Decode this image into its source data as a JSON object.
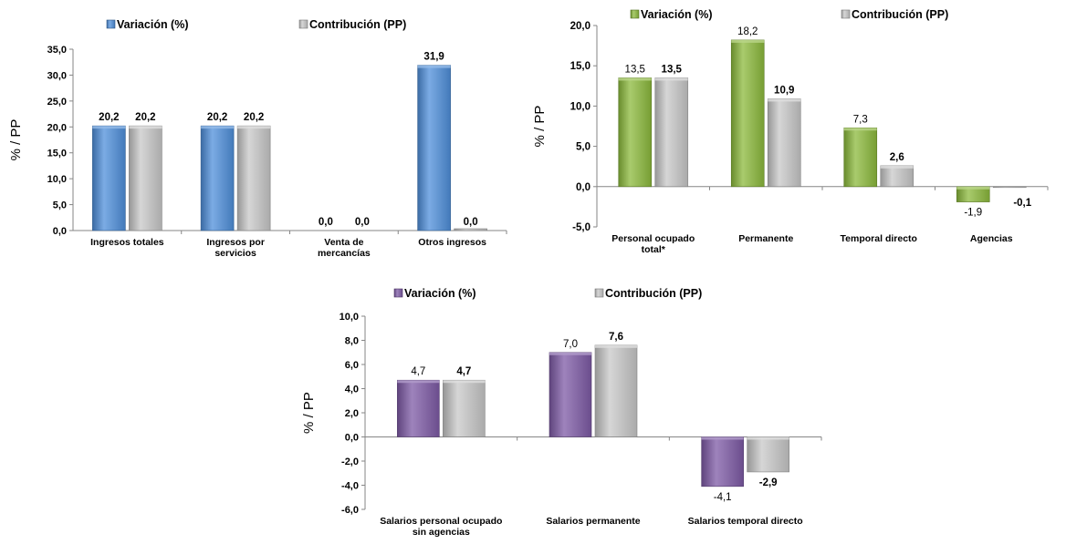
{
  "colors": {
    "variacion_blue": "#4F8FDB",
    "variacion_green": "#8CBA3C",
    "variacion_purple": "#7E5AA6",
    "contribucion_gray": "#C8C8C8",
    "axis": "#868686",
    "text": "#000000"
  },
  "chart_data": [
    {
      "type": "bar",
      "id": "ingresos",
      "title": "",
      "xlabel": "",
      "ylabel": "% / PP",
      "ylim": [
        0,
        35
      ],
      "yticks": [
        "0,0",
        "5,0",
        "10,0",
        "15,0",
        "20,0",
        "25,0",
        "30,0",
        "35,0"
      ],
      "grid": false,
      "legend": "top",
      "categories": [
        [
          "Ingresos totales"
        ],
        [
          "Ingresos por",
          "servicios"
        ],
        [
          "Venta de",
          "mercancías"
        ],
        [
          "Otros ingresos"
        ]
      ],
      "series": [
        {
          "name": "Variación (%)",
          "color": "#4F8FDB",
          "values": [
            20.2,
            20.2,
            0.0,
            31.9
          ],
          "labels": [
            "20,2",
            "20,2",
            "0,0",
            "31,9"
          ]
        },
        {
          "name": "Contribución (PP)",
          "color": "#C8C8C8",
          "values": [
            20.2,
            20.2,
            0.0,
            0.0
          ],
          "labels": [
            "20,2",
            "20,2",
            "0,0",
            "0,0"
          ]
        }
      ]
    },
    {
      "type": "bar",
      "id": "personal",
      "title": "",
      "xlabel": "",
      "ylabel": "% / PP",
      "ylim": [
        -5,
        20
      ],
      "yticks": [
        "-5,0",
        "0,0",
        "5,0",
        "10,0",
        "15,0",
        "20,0"
      ],
      "grid": false,
      "legend": "top",
      "categories": [
        [
          "Personal ocupado",
          "total*"
        ],
        [
          "Permanente"
        ],
        [
          "Temporal directo"
        ],
        [
          "Agencias"
        ]
      ],
      "series": [
        {
          "name": "Variación (%)",
          "color": "#8CBA3C",
          "values": [
            13.5,
            18.2,
            7.3,
            -1.9
          ],
          "labels": [
            "13,5",
            "18,2",
            "7,3",
            "-1,9"
          ]
        },
        {
          "name": "Contribución (PP)",
          "color": "#C8C8C8",
          "values": [
            13.5,
            10.9,
            2.6,
            -0.1
          ],
          "labels": [
            "13,5",
            "10,9",
            "2,6",
            "-0,1"
          ]
        }
      ]
    },
    {
      "type": "bar",
      "id": "salarios",
      "title": "",
      "xlabel": "",
      "ylabel": "% / PP",
      "ylim": [
        -6,
        10
      ],
      "yticks": [
        "-6,0",
        "-4,0",
        "-2,0",
        "0,0",
        "2,0",
        "4,0",
        "6,0",
        "8,0",
        "10,0"
      ],
      "grid": false,
      "legend": "top",
      "categories": [
        [
          "Salarios personal ocupado",
          "sin agencias"
        ],
        [
          "Salarios permanente"
        ],
        [
          "Salarios temporal directo"
        ]
      ],
      "series": [
        {
          "name": "Variación (%)",
          "color": "#7E5AA6",
          "values": [
            4.7,
            7.0,
            -4.1
          ],
          "labels": [
            "4,7",
            "7,0",
            "-4,1"
          ]
        },
        {
          "name": "Contribución (PP)",
          "color": "#C8C8C8",
          "values": [
            4.7,
            7.6,
            -2.9
          ],
          "labels": [
            "4,7",
            "7,6",
            "-2,9"
          ]
        }
      ]
    }
  ]
}
